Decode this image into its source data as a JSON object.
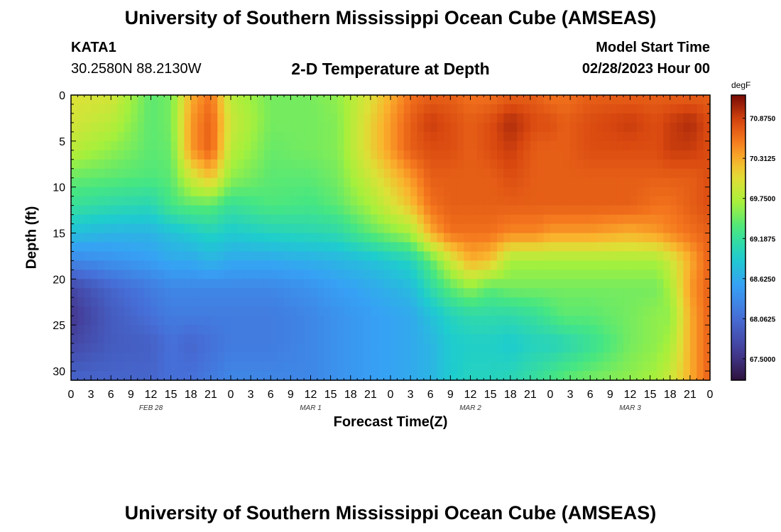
{
  "header": {
    "title": "University of Southern Mississippi Ocean Cube (AMSEAS)",
    "station_id": "KATA1",
    "station_coords": "30.2580N  88.2130W",
    "plot_title": "2-D Temperature at Depth",
    "model_start_label": "Model Start Time",
    "model_start_value": "02/28/2023 Hour 00"
  },
  "footer": {
    "title": "University of Southern Mississippi Ocean Cube (AMSEAS)"
  },
  "chart_data": {
    "type": "heatmap",
    "title": "2-D Temperature at Depth",
    "xlabel": "Forecast Time(Z)",
    "ylabel": "Depth (ft)",
    "x_tick_labels": [
      "0",
      "3",
      "6",
      "9",
      "12",
      "15",
      "18",
      "21",
      "0",
      "3",
      "6",
      "9",
      "12",
      "15",
      "18",
      "21",
      "0",
      "3",
      "6",
      "9",
      "12",
      "15",
      "18",
      "21",
      "0",
      "3",
      "6",
      "9",
      "12",
      "15",
      "18",
      "21",
      "0"
    ],
    "x_day_labels": [
      "FEB 28",
      "MAR 1",
      "MAR 2",
      "MAR 3"
    ],
    "x_range_hours": [
      0,
      96
    ],
    "y_ticks": [
      0,
      5,
      10,
      15,
      20,
      25,
      30
    ],
    "ylim": [
      0,
      31
    ],
    "y_inverted": true,
    "colorbar": {
      "unit": "degF",
      "range": [
        67.2,
        71.2
      ],
      "tick_values": [
        70.875,
        70.3125,
        69.75,
        69.1875,
        68.625,
        68.0625,
        67.5
      ],
      "tick_labels": [
        "70.8750",
        "70.3125",
        "69.7500",
        "69.1875",
        "68.6250",
        "68.0625",
        "67.5000"
      ],
      "colormap": "turbo"
    },
    "depths_ft": [
      0,
      3,
      6,
      9,
      12,
      15,
      18,
      21,
      24,
      27,
      31
    ],
    "times_h": [
      0,
      6,
      12,
      15,
      18,
      21,
      24,
      30,
      36,
      40,
      45,
      51,
      54,
      57,
      60,
      63,
      66,
      70,
      72,
      74,
      78,
      84,
      88,
      90,
      93,
      96
    ],
    "temperature_degF": [
      [
        70.0,
        69.95,
        69.4,
        69.5,
        70.3,
        70.6,
        69.8,
        69.5,
        69.5,
        69.6,
        70.0,
        70.6,
        70.7,
        70.7,
        70.6,
        70.6,
        70.7,
        70.7,
        70.6,
        70.6,
        70.7,
        70.7,
        70.7,
        70.7,
        70.7,
        70.7
      ],
      [
        69.95,
        69.8,
        69.4,
        69.5,
        70.4,
        70.7,
        69.9,
        69.5,
        69.5,
        69.55,
        70.1,
        70.7,
        70.9,
        70.8,
        70.7,
        70.8,
        71.0,
        70.8,
        70.8,
        70.7,
        70.8,
        70.9,
        70.8,
        70.9,
        71.0,
        70.8
      ],
      [
        69.8,
        69.6,
        69.4,
        69.45,
        70.4,
        70.7,
        69.8,
        69.45,
        69.5,
        69.55,
        70.1,
        70.7,
        70.8,
        70.8,
        70.7,
        70.8,
        70.9,
        70.7,
        70.7,
        70.7,
        70.8,
        70.8,
        70.8,
        70.9,
        70.9,
        70.8
      ],
      [
        69.45,
        69.4,
        69.35,
        69.4,
        69.9,
        70.2,
        69.6,
        69.4,
        69.4,
        69.5,
        69.9,
        70.4,
        70.7,
        70.7,
        70.7,
        70.7,
        70.8,
        70.7,
        70.7,
        70.7,
        70.7,
        70.7,
        70.7,
        70.7,
        70.7,
        70.8
      ],
      [
        69.2,
        69.1,
        69.05,
        69.3,
        69.4,
        69.4,
        69.2,
        69.35,
        69.3,
        69.4,
        69.7,
        70.2,
        70.6,
        70.7,
        70.7,
        70.7,
        70.7,
        70.7,
        70.7,
        70.7,
        70.7,
        70.7,
        70.6,
        70.6,
        70.7,
        70.8
      ],
      [
        68.8,
        68.7,
        68.7,
        68.8,
        68.9,
        69.0,
        68.9,
        69.0,
        69.05,
        69.1,
        69.4,
        69.7,
        70.3,
        70.6,
        70.6,
        70.6,
        70.5,
        70.5,
        70.4,
        70.4,
        70.4,
        70.3,
        70.4,
        70.5,
        70.6,
        70.7
      ],
      [
        68.3,
        68.4,
        68.5,
        68.6,
        68.6,
        68.7,
        68.6,
        68.6,
        68.65,
        68.7,
        68.8,
        69.0,
        69.4,
        69.9,
        70.3,
        70.2,
        69.7,
        69.7,
        69.7,
        69.7,
        69.7,
        69.7,
        69.7,
        69.9,
        70.3,
        70.7
      ],
      [
        67.7,
        68.0,
        68.2,
        68.3,
        68.3,
        68.3,
        68.3,
        68.3,
        68.4,
        68.5,
        68.6,
        68.75,
        69.1,
        69.4,
        69.6,
        69.4,
        69.5,
        69.5,
        69.5,
        69.5,
        69.5,
        69.5,
        69.5,
        69.7,
        70.4,
        70.7
      ],
      [
        67.55,
        67.9,
        68.1,
        68.2,
        68.2,
        68.2,
        68.2,
        68.2,
        68.3,
        68.4,
        68.5,
        68.6,
        68.8,
        69.0,
        69.1,
        69.1,
        69.1,
        69.2,
        69.3,
        69.4,
        69.4,
        69.5,
        69.6,
        69.6,
        70.3,
        70.7
      ],
      [
        67.7,
        67.9,
        67.95,
        68.1,
        68.0,
        68.1,
        68.2,
        68.2,
        68.3,
        68.4,
        68.5,
        68.6,
        68.7,
        68.9,
        68.95,
        68.95,
        68.9,
        69.0,
        69.0,
        69.05,
        69.2,
        69.5,
        69.6,
        69.7,
        70.3,
        70.7
      ],
      [
        68.0,
        68.0,
        68.0,
        68.1,
        68.1,
        68.2,
        68.3,
        68.3,
        68.3,
        68.4,
        68.5,
        68.6,
        68.7,
        68.9,
        69.0,
        69.0,
        69.05,
        69.2,
        69.3,
        69.4,
        69.5,
        69.6,
        69.7,
        69.9,
        70.3,
        70.7
      ]
    ]
  }
}
